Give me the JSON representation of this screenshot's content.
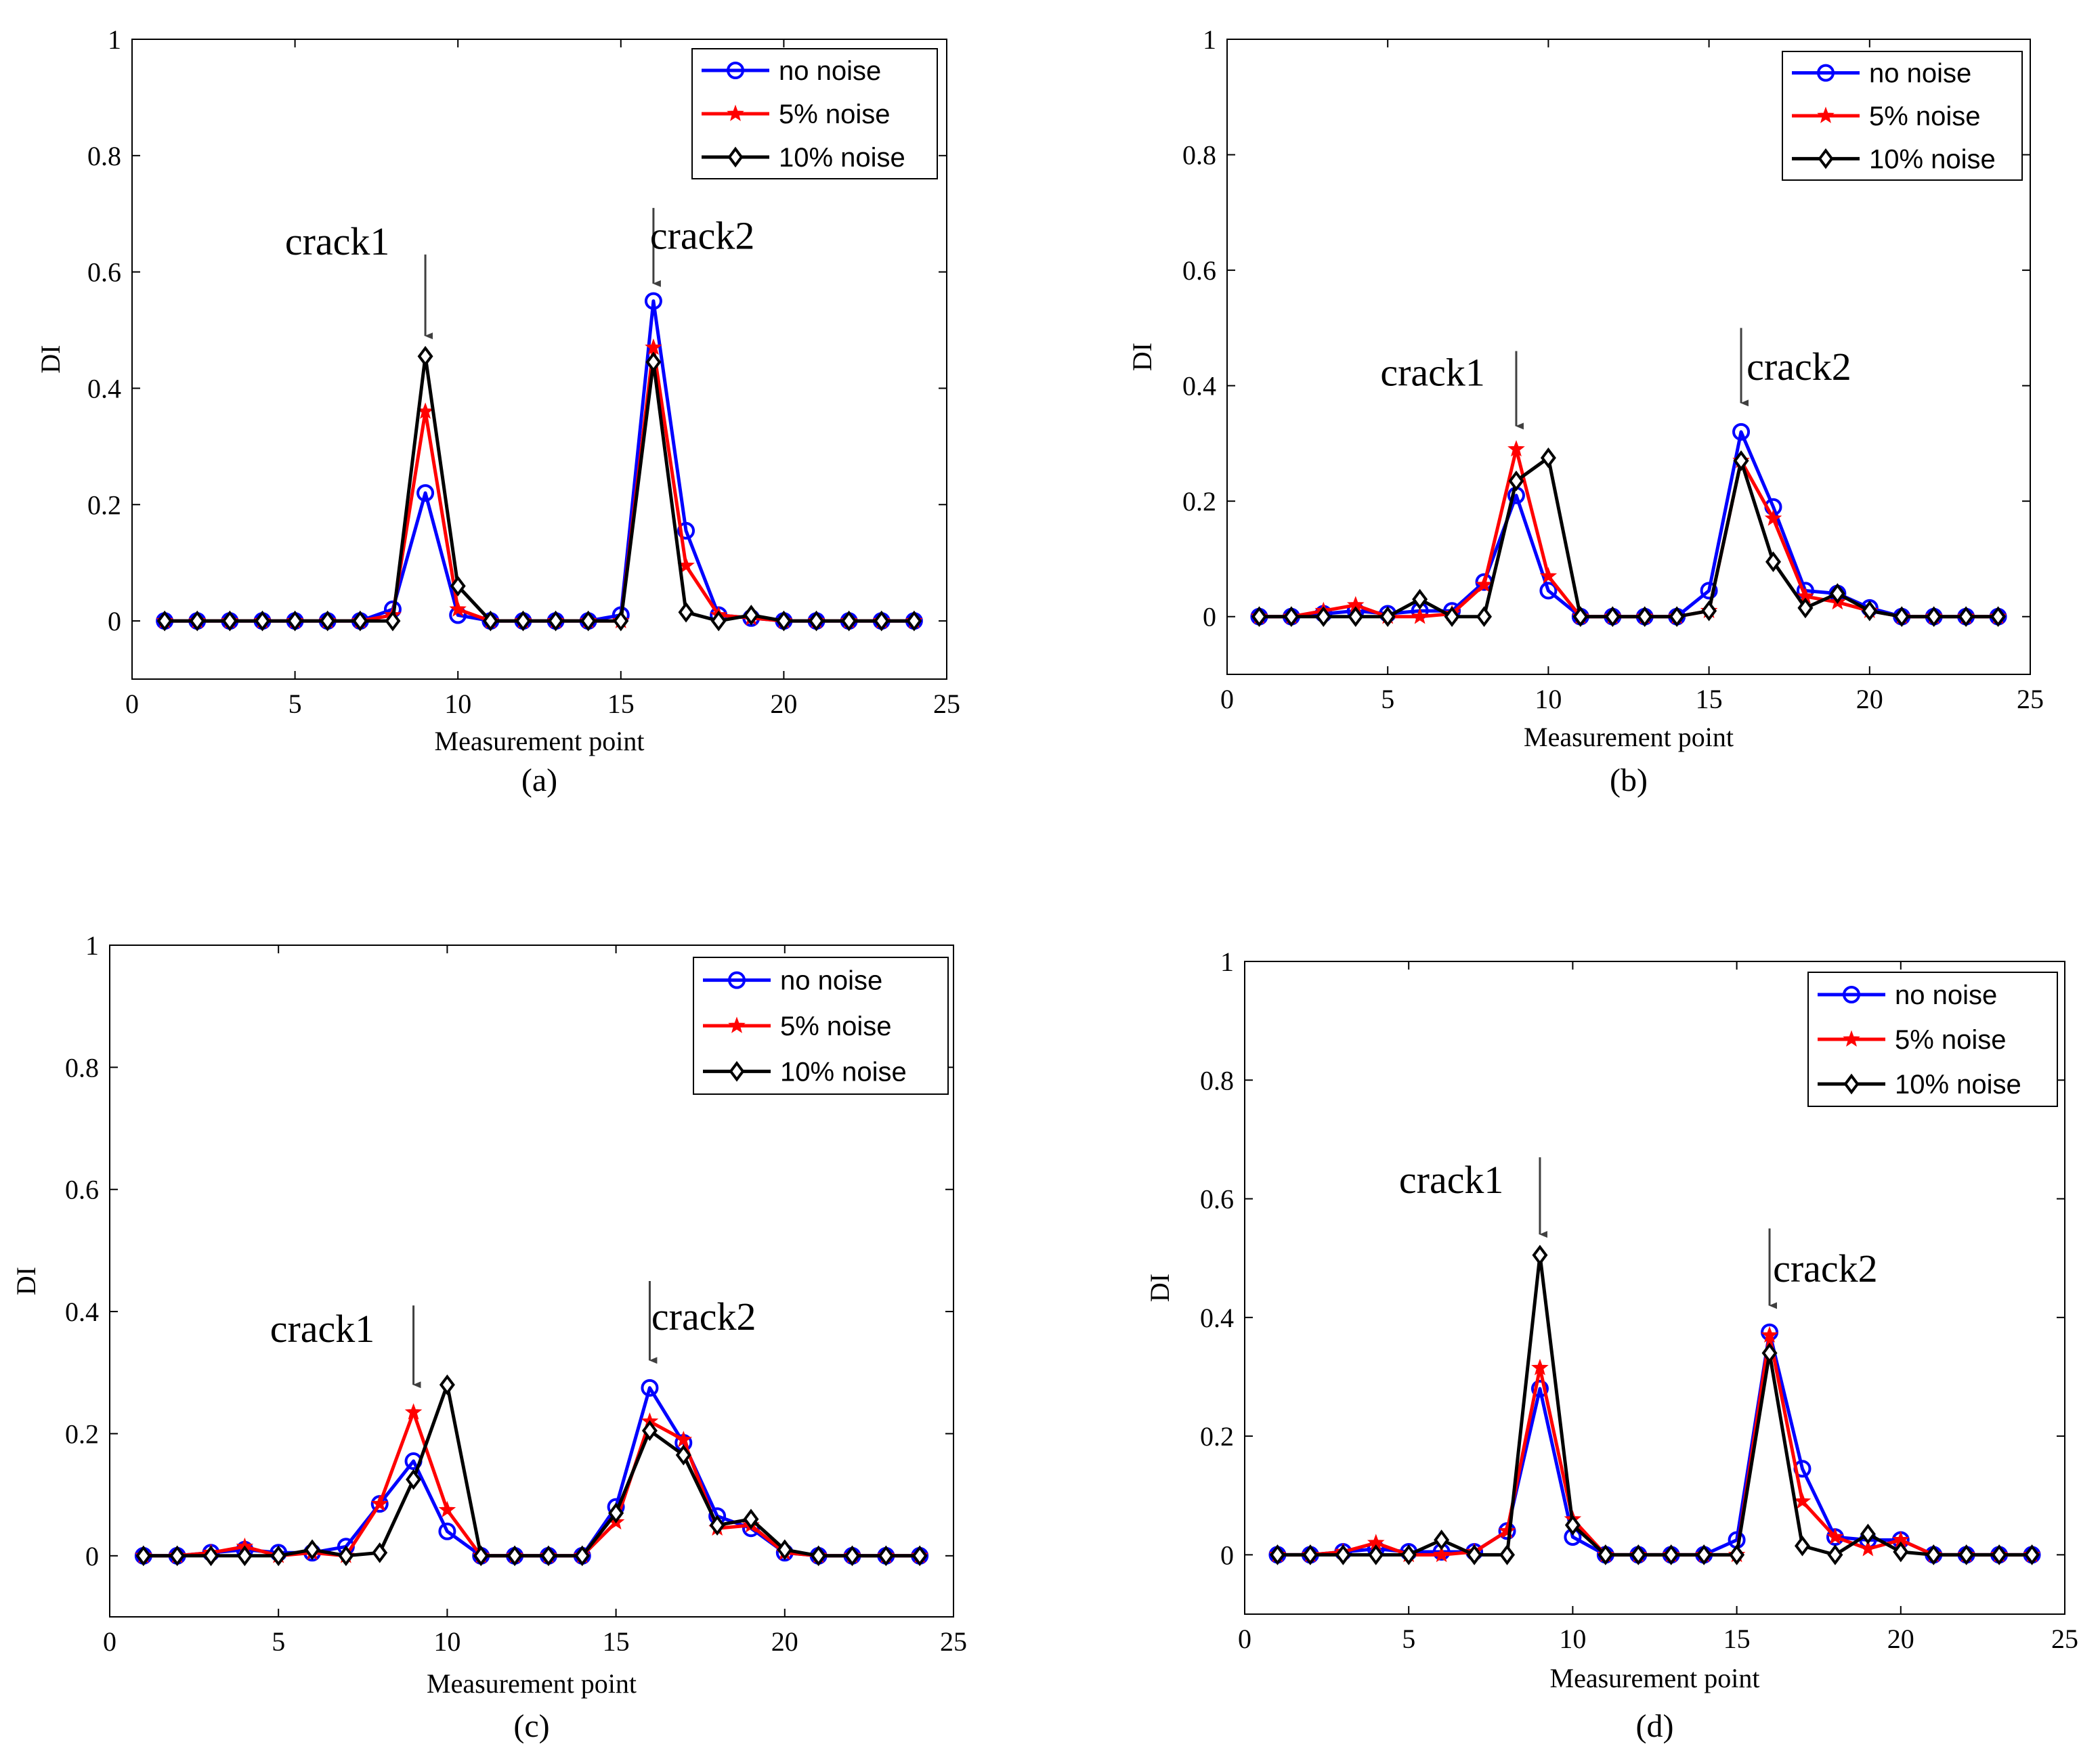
{
  "chart_data": [
    {
      "type": "line",
      "caption": "(a)",
      "xlabel": "Measurement point",
      "ylabel": "DI",
      "xlim": [
        0,
        25
      ],
      "ylim": [
        -0.1,
        1
      ],
      "xticks": [
        0,
        5,
        10,
        15,
        20,
        25
      ],
      "yticks": [
        0,
        0.2,
        0.4,
        0.6,
        0.8,
        1
      ],
      "ytick_labels": [
        "0",
        "0.2",
        "0.4",
        "0.6",
        "0.8",
        "1"
      ],
      "grid": false,
      "legend_position": "top-right",
      "x": [
        1,
        2,
        3,
        4,
        5,
        6,
        7,
        8,
        9,
        10,
        11,
        12,
        13,
        14,
        15,
        16,
        17,
        18,
        19,
        20,
        21,
        22,
        23,
        24
      ],
      "series": [
        {
          "name": "no noise",
          "color": "#0000ff",
          "marker": "circle",
          "values": [
            0,
            0,
            0,
            0,
            0,
            0,
            0,
            0.02,
            0.22,
            0.01,
            0,
            0,
            0,
            0,
            0.01,
            0.55,
            0.155,
            0.01,
            0.005,
            0,
            0,
            0,
            0,
            0
          ]
        },
        {
          "name": "5% noise",
          "color": "#ff0000",
          "marker": "star",
          "values": [
            0,
            0,
            0,
            0,
            0,
            0,
            0,
            0.01,
            0.36,
            0.02,
            0,
            0,
            0,
            0,
            0,
            0.47,
            0.095,
            0.01,
            0.005,
            0,
            0,
            0,
            0,
            0
          ]
        },
        {
          "name": "10% noise",
          "color": "#000000",
          "marker": "diamond",
          "values": [
            0,
            0,
            0,
            0,
            0,
            0,
            0,
            0,
            0.455,
            0.06,
            0,
            0,
            0,
            0,
            0,
            0.445,
            0.015,
            0,
            0.01,
            0,
            0,
            0,
            0,
            0
          ]
        }
      ],
      "annotations": [
        {
          "text": "crack1",
          "x": 9,
          "arrow_from": 0.63,
          "arrow_to": 0.49,
          "text_x": 6.3,
          "text_y": 0.63
        },
        {
          "text": "crack2",
          "x": 16,
          "arrow_from": 0.71,
          "arrow_to": 0.58,
          "text_x": 17.5,
          "text_y": 0.64
        }
      ]
    },
    {
      "type": "line",
      "caption": "(b)",
      "xlabel": "Measurement point",
      "ylabel": "DI",
      "xlim": [
        0,
        25
      ],
      "ylim": [
        -0.1,
        1
      ],
      "xticks": [
        0,
        5,
        10,
        15,
        20,
        25
      ],
      "yticks": [
        0,
        0.2,
        0.4,
        0.6,
        0.8,
        1
      ],
      "ytick_labels": [
        "0",
        "0.2",
        "0.4",
        "0.6",
        "0.8",
        "1"
      ],
      "grid": false,
      "legend_position": "top-right",
      "x": [
        1,
        2,
        3,
        4,
        5,
        6,
        7,
        8,
        9,
        10,
        11,
        12,
        13,
        14,
        15,
        16,
        17,
        18,
        19,
        20,
        21,
        22,
        23,
        24
      ],
      "series": [
        {
          "name": "no noise",
          "color": "#0000ff",
          "marker": "circle",
          "values": [
            0,
            0,
            0.005,
            0.01,
            0.005,
            0.01,
            0.01,
            0.06,
            0.21,
            0.045,
            0,
            0,
            0,
            0,
            0.045,
            0.32,
            0.19,
            0.045,
            0.04,
            0.015,
            0,
            0,
            0,
            0
          ]
        },
        {
          "name": "5% noise",
          "color": "#ff0000",
          "marker": "star",
          "values": [
            0,
            0,
            0.01,
            0.02,
            0,
            0,
            0.005,
            0.055,
            0.29,
            0.07,
            0,
            0,
            0,
            0,
            0.01,
            0.27,
            0.17,
            0.035,
            0.025,
            0.01,
            0,
            0,
            0,
            0
          ]
        },
        {
          "name": "10% noise",
          "color": "#000000",
          "marker": "diamond",
          "values": [
            0,
            0,
            0,
            0,
            0,
            0.03,
            0,
            0,
            0.235,
            0.275,
            0,
            0,
            0,
            0,
            0.01,
            0.27,
            0.095,
            0.015,
            0.04,
            0.01,
            0,
            0,
            0,
            0
          ]
        }
      ],
      "annotations": [
        {
          "text": "crack1",
          "x": 9,
          "arrow_from": 0.46,
          "arrow_to": 0.33,
          "text_x": 6.4,
          "text_y": 0.4
        },
        {
          "text": "crack2",
          "x": 16,
          "arrow_from": 0.5,
          "arrow_to": 0.37,
          "text_x": 17.8,
          "text_y": 0.41
        }
      ]
    },
    {
      "type": "line",
      "caption": "(c)",
      "xlabel": "Measurement point",
      "ylabel": "DI",
      "xlim": [
        0,
        25
      ],
      "ylim": [
        -0.1,
        1
      ],
      "xticks": [
        0,
        5,
        10,
        15,
        20,
        25
      ],
      "yticks": [
        0,
        0.2,
        0.4,
        0.6,
        0.8,
        1
      ],
      "ytick_labels": [
        "0",
        "0.2",
        "0.4",
        "0.6",
        "0.8",
        "1"
      ],
      "grid": false,
      "legend_position": "top-right",
      "x": [
        1,
        2,
        3,
        4,
        5,
        6,
        7,
        8,
        9,
        10,
        11,
        12,
        13,
        14,
        15,
        16,
        17,
        18,
        19,
        20,
        21,
        22,
        23,
        24
      ],
      "series": [
        {
          "name": "no noise",
          "color": "#0000ff",
          "marker": "circle",
          "values": [
            0,
            0,
            0.005,
            0.01,
            0.005,
            0.005,
            0.015,
            0.085,
            0.155,
            0.04,
            0,
            0,
            0,
            0,
            0.08,
            0.275,
            0.185,
            0.065,
            0.045,
            0.005,
            0,
            0,
            0,
            0
          ]
        },
        {
          "name": "5% noise",
          "color": "#ff0000",
          "marker": "star",
          "values": [
            0,
            0,
            0.005,
            0.015,
            0,
            0.005,
            0,
            0.085,
            0.235,
            0.075,
            0,
            0,
            0,
            0,
            0.055,
            0.22,
            0.19,
            0.045,
            0.05,
            0.005,
            0,
            0,
            0,
            0
          ]
        },
        {
          "name": "10% noise",
          "color": "#000000",
          "marker": "diamond",
          "values": [
            0,
            0,
            0,
            0,
            0,
            0.01,
            0,
            0.005,
            0.125,
            0.28,
            0,
            0,
            0,
            0,
            0.07,
            0.205,
            0.165,
            0.05,
            0.06,
            0.01,
            0,
            0,
            0,
            0
          ]
        }
      ],
      "annotations": [
        {
          "text": "crack1",
          "x": 9,
          "arrow_from": 0.41,
          "arrow_to": 0.28,
          "text_x": 6.3,
          "text_y": 0.35
        },
        {
          "text": "crack2",
          "x": 16,
          "arrow_from": 0.45,
          "arrow_to": 0.32,
          "text_x": 17.6,
          "text_y": 0.37
        }
      ]
    },
    {
      "type": "line",
      "caption": "(d)",
      "xlabel": "Measurement point",
      "ylabel": "DI",
      "xlim": [
        0,
        25
      ],
      "ylim": [
        -0.1,
        1
      ],
      "xticks": [
        0,
        5,
        10,
        15,
        20,
        25
      ],
      "yticks": [
        0,
        0.2,
        0.4,
        0.6,
        0.8,
        1
      ],
      "ytick_labels": [
        "0",
        "0.2",
        "0.4",
        "0.6",
        "0.8",
        "1"
      ],
      "grid": false,
      "legend_position": "top-right",
      "x": [
        1,
        2,
        3,
        4,
        5,
        6,
        7,
        8,
        9,
        10,
        11,
        12,
        13,
        14,
        15,
        16,
        17,
        18,
        19,
        20,
        21,
        22,
        23,
        24
      ],
      "series": [
        {
          "name": "no noise",
          "color": "#0000ff",
          "marker": "circle",
          "values": [
            0,
            0,
            0.005,
            0.01,
            0.005,
            0.005,
            0.005,
            0.04,
            0.28,
            0.03,
            0,
            0,
            0,
            0,
            0.025,
            0.375,
            0.145,
            0.03,
            0.025,
            0.025,
            0,
            0,
            0,
            0
          ]
        },
        {
          "name": "5% noise",
          "color": "#ff0000",
          "marker": "star",
          "values": [
            0,
            0,
            0.005,
            0.02,
            0,
            0,
            0.005,
            0.04,
            0.315,
            0.06,
            0,
            0,
            0,
            0,
            0,
            0.37,
            0.09,
            0.03,
            0.01,
            0.025,
            0,
            0,
            0,
            0
          ]
        },
        {
          "name": "10% noise",
          "color": "#000000",
          "marker": "diamond",
          "values": [
            0,
            0,
            0,
            0,
            0,
            0.025,
            0,
            0,
            0.505,
            0.05,
            0,
            0,
            0,
            0,
            0,
            0.34,
            0.015,
            0,
            0.035,
            0.005,
            0,
            0,
            0,
            0
          ]
        }
      ],
      "annotations": [
        {
          "text": "crack1",
          "x": 9,
          "arrow_from": 0.67,
          "arrow_to": 0.54,
          "text_x": 6.3,
          "text_y": 0.61
        },
        {
          "text": "crack2",
          "x": 16,
          "arrow_from": 0.55,
          "arrow_to": 0.42,
          "text_x": 17.7,
          "text_y": 0.46
        }
      ]
    }
  ]
}
